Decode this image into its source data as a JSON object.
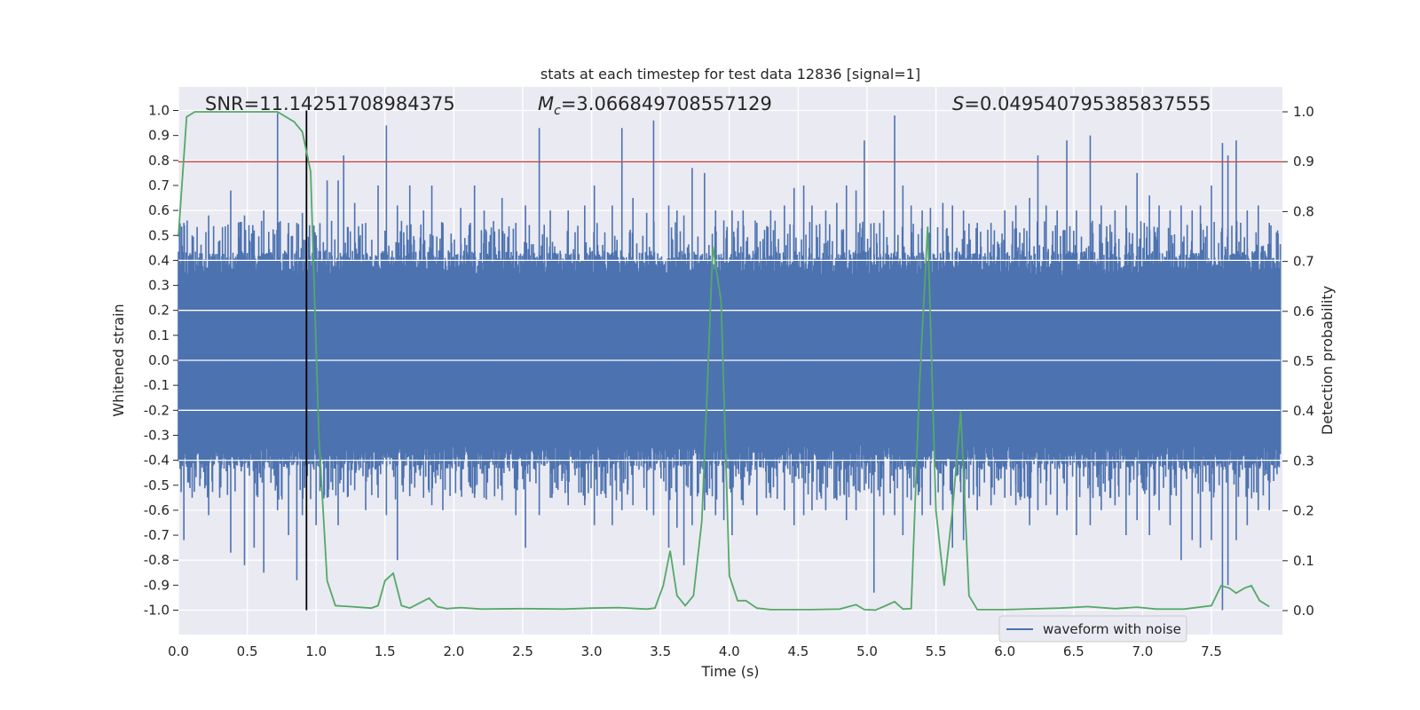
{
  "chart_data": {
    "type": "line",
    "title": "stats at each timestep for test data 12836 [signal=1]",
    "xlabel": "Time (s)",
    "ylabel": "Whitened strain",
    "ylabel_right": "Detection probability",
    "xlim": [
      0.0,
      8.0
    ],
    "ylim": [
      -1.1,
      1.1
    ],
    "ylim_right": [
      -0.05,
      1.05
    ],
    "x_ticks": [
      "0.0",
      "0.5",
      "1.0",
      "1.5",
      "2.0",
      "2.5",
      "3.0",
      "3.5",
      "4.0",
      "4.5",
      "5.0",
      "5.5",
      "6.0",
      "6.5",
      "7.0",
      "7.5"
    ],
    "y_ticks": [
      "1.0",
      "0.9",
      "0.8",
      "0.7",
      "0.6",
      "0.5",
      "0.4",
      "0.3",
      "0.2",
      "0.1",
      "0.0",
      "-0.1",
      "-0.2",
      "-0.3",
      "-0.4",
      "-0.5",
      "-0.6",
      "-0.7",
      "-0.8",
      "-0.9",
      "-1.0"
    ],
    "y_ticks_right": [
      "1.0",
      "0.9",
      "0.8",
      "0.7",
      "0.6",
      "0.5",
      "0.4",
      "0.3",
      "0.2",
      "0.1",
      "0.0"
    ],
    "grid": true,
    "annotations": {
      "snr": "SNR=11.14251708984375",
      "mc_symbol": "M",
      "mc_sub": "c",
      "mc_value": "=3.066849708557129",
      "s_symbol": "S",
      "s_value": "=0.049540795385837555"
    },
    "threshold": {
      "value": 0.9,
      "axis": "right",
      "color": "#c44e52"
    },
    "marker_line": {
      "x": 0.93,
      "y_from": -1.0,
      "y_to": 1.0,
      "color": "#000000"
    },
    "waveform": {
      "name": "waveform with noise",
      "color": "#4c72b0",
      "band": 0.4,
      "spikes": [
        [
          0.04,
          0.55,
          -0.72
        ],
        [
          0.1,
          0.5,
          -0.55
        ],
        [
          0.22,
          0.58,
          -0.62
        ],
        [
          0.3,
          0.48,
          -0.55
        ],
        [
          0.38,
          0.68,
          -0.77
        ],
        [
          0.48,
          0.58,
          -0.82
        ],
        [
          0.55,
          0.52,
          -0.75
        ],
        [
          0.62,
          0.6,
          -0.85
        ],
        [
          0.72,
          0.99,
          -0.6
        ],
        [
          0.8,
          0.55,
          -0.7
        ],
        [
          0.86,
          0.55,
          -0.88
        ],
        [
          0.9,
          0.59,
          -0.62
        ],
        [
          1.0,
          0.5,
          -0.66
        ],
        [
          1.08,
          0.72,
          -0.55
        ],
        [
          1.16,
          0.72,
          -0.66
        ],
        [
          1.2,
          0.82,
          -0.45
        ],
        [
          1.28,
          0.63,
          -0.52
        ],
        [
          1.36,
          0.55,
          -0.6
        ],
        [
          1.45,
          0.7,
          -0.55
        ],
        [
          1.51,
          0.94,
          -0.62
        ],
        [
          1.59,
          0.62,
          -0.8
        ],
        [
          1.68,
          0.7,
          -0.52
        ],
        [
          1.78,
          0.6,
          -0.55
        ],
        [
          1.84,
          0.7,
          -0.58
        ],
        [
          1.92,
          0.55,
          -0.6
        ],
        [
          2.05,
          0.61,
          -0.52
        ],
        [
          2.15,
          0.7,
          -0.55
        ],
        [
          2.22,
          0.6,
          -0.55
        ],
        [
          2.35,
          0.65,
          -0.56
        ],
        [
          2.45,
          0.55,
          -0.62
        ],
        [
          2.52,
          0.62,
          -0.75
        ],
        [
          2.62,
          0.93,
          -0.62
        ],
        [
          2.7,
          0.6,
          -0.55
        ],
        [
          2.83,
          0.6,
          -0.58
        ],
        [
          2.95,
          0.62,
          -0.58
        ],
        [
          3.02,
          0.7,
          -0.66
        ],
        [
          3.15,
          0.62,
          -0.66
        ],
        [
          3.22,
          0.93,
          -0.6
        ],
        [
          3.3,
          0.65,
          -0.58
        ],
        [
          3.4,
          0.59,
          -0.6
        ],
        [
          3.45,
          0.96,
          -0.62
        ],
        [
          3.56,
          0.62,
          -0.75
        ],
        [
          3.62,
          0.6,
          -0.67
        ],
        [
          3.67,
          0.58,
          -0.82
        ],
        [
          3.73,
          0.77,
          -0.66
        ],
        [
          3.82,
          0.75,
          -0.6
        ],
        [
          3.9,
          0.6,
          -0.62
        ],
        [
          3.96,
          0.56,
          -0.64
        ],
        [
          4.02,
          0.6,
          -0.7
        ],
        [
          4.1,
          0.6,
          -0.58
        ],
        [
          4.2,
          0.55,
          -0.62
        ],
        [
          4.3,
          0.6,
          -0.55
        ],
        [
          4.4,
          0.62,
          -0.6
        ],
        [
          4.47,
          0.69,
          -0.66
        ],
        [
          4.54,
          0.7,
          -0.62
        ],
        [
          4.6,
          0.62,
          -0.6
        ],
        [
          4.7,
          0.6,
          -0.6
        ],
        [
          4.78,
          0.63,
          -0.56
        ],
        [
          4.85,
          0.7,
          -0.64
        ],
        [
          4.92,
          0.68,
          -0.6
        ],
        [
          4.98,
          0.88,
          -0.52
        ],
        [
          5.05,
          0.55,
          -0.93
        ],
        [
          5.12,
          0.6,
          -0.62
        ],
        [
          5.2,
          0.98,
          -0.62
        ],
        [
          5.26,
          0.7,
          -0.7
        ],
        [
          5.32,
          0.62,
          -0.56
        ],
        [
          5.4,
          0.6,
          -0.62
        ],
        [
          5.46,
          0.61,
          -0.58
        ],
        [
          5.55,
          0.63,
          -0.6
        ],
        [
          5.62,
          0.62,
          -0.75
        ],
        [
          5.7,
          0.6,
          -0.72
        ],
        [
          5.8,
          0.55,
          -0.6
        ],
        [
          5.9,
          0.55,
          -0.58
        ],
        [
          6.0,
          0.6,
          -0.55
        ],
        [
          6.08,
          0.62,
          -0.58
        ],
        [
          6.18,
          0.65,
          -0.66
        ],
        [
          6.24,
          0.82,
          -0.6
        ],
        [
          6.3,
          0.62,
          -0.58
        ],
        [
          6.38,
          0.6,
          -0.62
        ],
        [
          6.45,
          0.88,
          -0.6
        ],
        [
          6.52,
          0.6,
          -0.7
        ],
        [
          6.62,
          0.9,
          -0.66
        ],
        [
          6.7,
          0.62,
          -0.6
        ],
        [
          6.8,
          0.6,
          -0.58
        ],
        [
          6.88,
          0.62,
          -0.7
        ],
        [
          6.96,
          0.75,
          -0.64
        ],
        [
          7.05,
          0.66,
          -0.7
        ],
        [
          7.12,
          0.62,
          -0.6
        ],
        [
          7.2,
          0.6,
          -0.66
        ],
        [
          7.28,
          0.62,
          -0.8
        ],
        [
          7.36,
          0.6,
          -0.72
        ],
        [
          7.42,
          0.62,
          -0.75
        ],
        [
          7.5,
          0.7,
          -0.72
        ],
        [
          7.58,
          0.87,
          -1.0
        ],
        [
          7.62,
          0.82,
          -0.9
        ],
        [
          7.68,
          0.88,
          -0.72
        ],
        [
          7.76,
          0.6,
          -0.66
        ],
        [
          7.84,
          0.62,
          -0.6
        ],
        [
          7.92,
          0.55,
          -0.6
        ]
      ]
    },
    "probability": {
      "name": "Detection probability",
      "color": "#55a868",
      "points": [
        [
          0.0,
          0.75
        ],
        [
          0.06,
          0.99
        ],
        [
          0.12,
          1.0
        ],
        [
          0.3,
          1.0
        ],
        [
          0.5,
          1.0
        ],
        [
          0.62,
          1.0
        ],
        [
          0.72,
          1.0
        ],
        [
          0.78,
          0.99
        ],
        [
          0.84,
          0.98
        ],
        [
          0.9,
          0.96
        ],
        [
          0.96,
          0.88
        ],
        [
          1.02,
          0.35
        ],
        [
          1.08,
          0.06
        ],
        [
          1.14,
          0.01
        ],
        [
          1.25,
          0.008
        ],
        [
          1.4,
          0.005
        ],
        [
          1.45,
          0.01
        ],
        [
          1.5,
          0.06
        ],
        [
          1.56,
          0.075
        ],
        [
          1.62,
          0.01
        ],
        [
          1.68,
          0.005
        ],
        [
          1.75,
          0.015
        ],
        [
          1.82,
          0.025
        ],
        [
          1.88,
          0.008
        ],
        [
          1.95,
          0.004
        ],
        [
          2.05,
          0.006
        ],
        [
          2.2,
          0.003
        ],
        [
          2.5,
          0.004
        ],
        [
          2.8,
          0.003
        ],
        [
          3.0,
          0.005
        ],
        [
          3.2,
          0.006
        ],
        [
          3.4,
          0.003
        ],
        [
          3.46,
          0.005
        ],
        [
          3.52,
          0.05
        ],
        [
          3.57,
          0.12
        ],
        [
          3.62,
          0.03
        ],
        [
          3.68,
          0.01
        ],
        [
          3.74,
          0.03
        ],
        [
          3.8,
          0.18
        ],
        [
          3.84,
          0.45
        ],
        [
          3.88,
          0.73
        ],
        [
          3.94,
          0.62
        ],
        [
          4.0,
          0.07
        ],
        [
          4.06,
          0.02
        ],
        [
          4.12,
          0.02
        ],
        [
          4.2,
          0.005
        ],
        [
          4.3,
          0.002
        ],
        [
          4.6,
          0.002
        ],
        [
          4.8,
          0.003
        ],
        [
          4.92,
          0.012
        ],
        [
          4.98,
          0.002
        ],
        [
          5.06,
          0.001
        ],
        [
          5.12,
          0.008
        ],
        [
          5.2,
          0.018
        ],
        [
          5.26,
          0.003
        ],
        [
          5.32,
          0.004
        ],
        [
          5.38,
          0.45
        ],
        [
          5.44,
          0.77
        ],
        [
          5.5,
          0.2
        ],
        [
          5.56,
          0.05
        ],
        [
          5.62,
          0.2
        ],
        [
          5.68,
          0.4
        ],
        [
          5.74,
          0.03
        ],
        [
          5.8,
          0.002
        ],
        [
          6.0,
          0.002
        ],
        [
          6.4,
          0.005
        ],
        [
          6.6,
          0.008
        ],
        [
          6.8,
          0.004
        ],
        [
          6.96,
          0.007
        ],
        [
          7.1,
          0.003
        ],
        [
          7.3,
          0.003
        ],
        [
          7.5,
          0.01
        ],
        [
          7.57,
          0.05
        ],
        [
          7.63,
          0.045
        ],
        [
          7.68,
          0.035
        ],
        [
          7.74,
          0.045
        ],
        [
          7.79,
          0.05
        ],
        [
          7.85,
          0.02
        ],
        [
          7.92,
          0.008
        ]
      ]
    },
    "legend": {
      "label": "waveform with noise",
      "placement": "lower-right"
    }
  }
}
